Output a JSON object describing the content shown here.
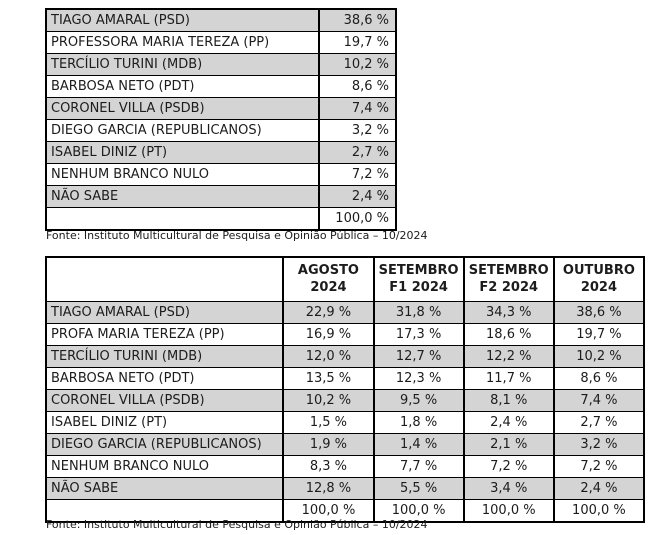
{
  "colors": {
    "row_shade": "#d4d4d4",
    "border": "#000000",
    "text": "#1c1c1c",
    "background": "#ffffff"
  },
  "table1": {
    "rows": [
      {
        "label": "TIAGO AMARAL (PSD)",
        "value": "38,6 %"
      },
      {
        "label": "PROFESSORA MARIA TEREZA (PP)",
        "value": "19,7 %"
      },
      {
        "label": "TERCÍLIO TURINI (MDB)",
        "value": "10,2 %"
      },
      {
        "label": "BARBOSA NETO (PDT)",
        "value": "8,6 %"
      },
      {
        "label": "CORONEL VILLA (PSDB)",
        "value": "7,4 %"
      },
      {
        "label": "DIEGO GARCIA (REPUBLICANOS)",
        "value": "3,2 %"
      },
      {
        "label": "ISABEL DINIZ (PT)",
        "value": "2,7 %"
      },
      {
        "label": "NENHUM BRANCO NULO",
        "value": "7,2 %"
      },
      {
        "label": "NÃO SABE",
        "value": "2,4 %"
      },
      {
        "label": "",
        "value": "100,0 %"
      }
    ],
    "source": "Fonte: Instituto Multicultural de Pesquisa e Opinião Pública – 10/2024"
  },
  "table2": {
    "headers": [
      "",
      "AGOSTO\n2024",
      "SETEMBRO\nF1 2024",
      "SETEMBRO\nF2 2024",
      "OUTUBRO\n2024"
    ],
    "rows": [
      {
        "label": "TIAGO AMARAL (PSD)",
        "values": [
          "22,9 %",
          "31,8 %",
          "34,3 %",
          "38,6 %"
        ]
      },
      {
        "label": "PROFA MARIA TEREZA (PP)",
        "values": [
          "16,9 %",
          "17,3 %",
          "18,6 %",
          "19,7 %"
        ]
      },
      {
        "label": "TERCÍLIO TURINI (MDB)",
        "values": [
          "12,0 %",
          "12,7 %",
          "12,2 %",
          "10,2 %"
        ]
      },
      {
        "label": "BARBOSA NETO (PDT)",
        "values": [
          "13,5 %",
          "12,3 %",
          "11,7 %",
          "8,6 %"
        ]
      },
      {
        "label": "CORONEL VILLA (PSDB)",
        "values": [
          "10,2 %",
          "9,5 %",
          "8,1 %",
          "7,4 %"
        ]
      },
      {
        "label": "ISABEL DINIZ (PT)",
        "values": [
          "1,5 %",
          "1,8 %",
          "2,4 %",
          "2,7 %"
        ]
      },
      {
        "label": "DIEGO GARCIA (REPUBLICANOS)",
        "values": [
          "1,9 %",
          "1,4 %",
          "2,1 %",
          "3,2 %"
        ]
      },
      {
        "label": "NENHUM BRANCO NULO",
        "values": [
          "8,3 %",
          "7,7 %",
          "7,2 %",
          "7,2 %"
        ]
      },
      {
        "label": "NÃO SABE",
        "values": [
          "12,8 %",
          "5,5 %",
          "3,4 %",
          "2,4 %"
        ]
      },
      {
        "label": "",
        "values": [
          "100,0 %",
          "100,0 %",
          "100,0 %",
          "100,0 %"
        ]
      }
    ],
    "source": "Fonte: Instituto Multicultural de Pesquisa e Opinião Pública – 10/2024"
  }
}
